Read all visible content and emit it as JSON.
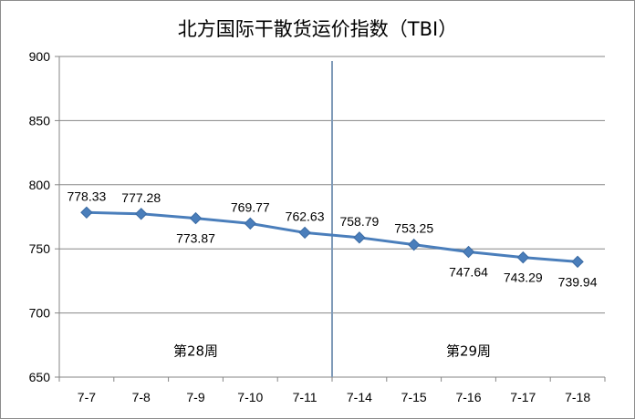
{
  "chart_data": {
    "type": "line",
    "title": "北方国际干散货运价指数（TBI）",
    "categories": [
      "7-7",
      "7-8",
      "7-9",
      "7-10",
      "7-11",
      "7-14",
      "7-15",
      "7-16",
      "7-17",
      "7-18"
    ],
    "values": [
      778.33,
      777.28,
      773.87,
      769.77,
      762.63,
      758.79,
      753.25,
      747.64,
      743.29,
      739.94
    ],
    "data_labels": [
      "778.33",
      "777.28",
      "773.87",
      "769.77",
      "762.63",
      "758.79",
      "753.25",
      "747.64",
      "743.29",
      "739.94"
    ],
    "ylim": [
      650,
      900
    ],
    "yticks": [
      650,
      700,
      750,
      800,
      850,
      900
    ],
    "ytick_labels": [
      "650",
      "700",
      "750",
      "800",
      "850",
      "900"
    ],
    "xlabel": "",
    "ylabel": "",
    "grid": "horizontal",
    "legend": "none",
    "line_color": "#4a7ebb",
    "marker": "diamond",
    "annotations": [
      {
        "text": "第28周",
        "category_span": [
          "7-7",
          "7-11"
        ],
        "y": 671
      },
      {
        "text": "第29周",
        "category_span": [
          "7-14",
          "7-18"
        ],
        "y": 671
      }
    ],
    "divider": {
      "between": [
        "7-11",
        "7-14"
      ],
      "color": "#7f9ab8"
    }
  }
}
